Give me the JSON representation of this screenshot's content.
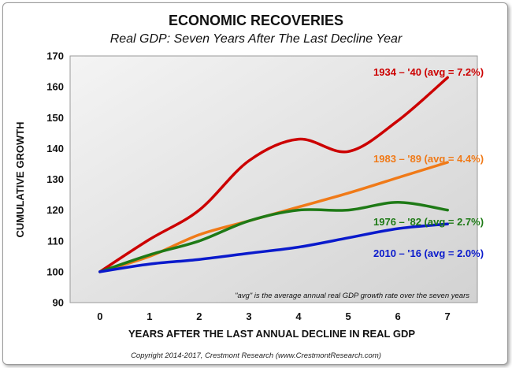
{
  "chart_data": {
    "type": "line",
    "title": "ECONOMIC RECOVERIES",
    "subtitle": "Real GDP: Seven Years After The Last Decline Year",
    "xlabel": "YEARS AFTER THE LAST ANNUAL DECLINE IN REAL GDP",
    "ylabel": "CUMULATIVE GROWTH",
    "x": [
      0,
      1,
      2,
      3,
      4,
      5,
      6,
      7
    ],
    "xlim": [
      -0.6,
      7.6
    ],
    "ylim": [
      90,
      170
    ],
    "yticks": [
      90,
      100,
      110,
      120,
      130,
      140,
      150,
      160,
      170
    ],
    "grid": false,
    "series": [
      {
        "name": "1934 – '40 (avg = 7.2%)",
        "color": "#cc0000",
        "values": [
          100,
          110.5,
          120,
          136,
          143,
          139,
          149,
          163
        ]
      },
      {
        "name": "1983 – '89 (avg = 4.4%)",
        "color": "#f07a18",
        "values": [
          100,
          105,
          112,
          116.5,
          121,
          125.5,
          130.5,
          135.5
        ]
      },
      {
        "name": "1976 – '82 (avg = 2.7%)",
        "color": "#1e7a16",
        "values": [
          100,
          105.5,
          110,
          116.5,
          120,
          120,
          122.5,
          120
        ]
      },
      {
        "name": "2010 – '16 (avg = 2.0%)",
        "color": "#0a1acc",
        "values": [
          100,
          102.5,
          104,
          106,
          108,
          111,
          114,
          115.5
        ]
      }
    ],
    "annotation": "\"avg\" is the average annual real GDP growth rate over the seven years"
  },
  "footer": {
    "copyright": "Copyright 2014-2017, Crestmont Research (www.CrestmontResearch.com)"
  }
}
